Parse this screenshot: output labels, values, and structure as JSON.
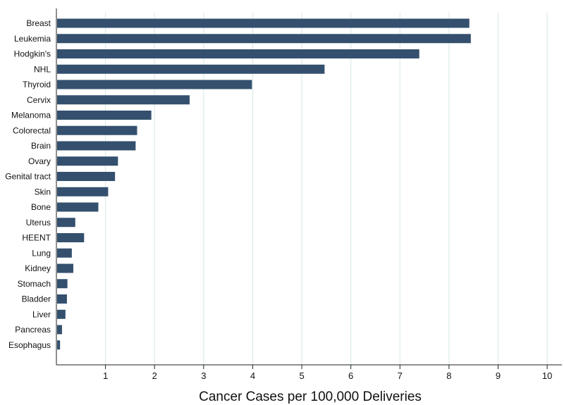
{
  "chart_data": {
    "type": "bar",
    "orientation": "horizontal",
    "categories": [
      "Breast",
      "Leukemia",
      "Hodgkin's",
      "NHL",
      "Thyroid",
      "Cervix",
      "Melanoma",
      "Colorectal",
      "Brain",
      "Ovary",
      "Genital tract",
      "Skin",
      "Bone",
      "Uterus",
      "HEENT",
      "Lung",
      "Kidney",
      "Stomach",
      "Bladder",
      "Liver",
      "Pancreas",
      "Esophagus"
    ],
    "values": [
      8.4,
      8.43,
      7.38,
      5.45,
      3.97,
      2.7,
      1.92,
      1.63,
      1.6,
      1.24,
      1.18,
      1.04,
      0.84,
      0.37,
      0.55,
      0.3,
      0.33,
      0.21,
      0.2,
      0.17,
      0.1,
      0.06
    ],
    "title": "",
    "xlabel": "Cancer Cases per 100,000 Deliveries",
    "ylabel": "",
    "xlim": [
      0,
      10.3
    ],
    "xticks": [
      "1",
      "2",
      "3",
      "4",
      "5",
      "6",
      "7",
      "8",
      "9",
      "10"
    ],
    "grid": "vertical",
    "legend": "none",
    "colors": {
      "bar": "#34506e",
      "grid": "#dcebeb",
      "axis": "#222222"
    }
  }
}
